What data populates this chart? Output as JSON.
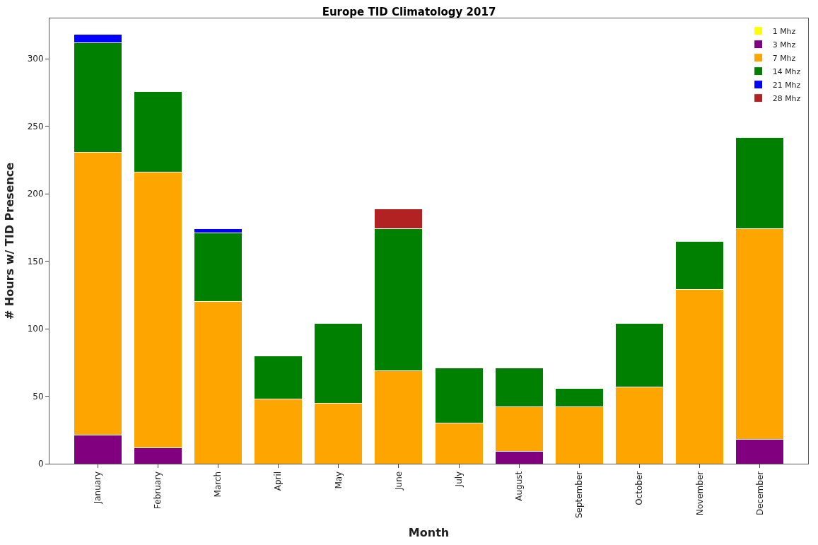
{
  "chart_data": {
    "type": "bar",
    "title": "Europe TID Climatology 2017",
    "xlabel": "Month",
    "ylabel": "# Hours w/ TID Presence",
    "categories": [
      "January",
      "February",
      "March",
      "April",
      "May",
      "June",
      "July",
      "August",
      "September",
      "October",
      "November",
      "December"
    ],
    "stacked": true,
    "ylim": [
      0,
      330
    ],
    "yticks": [
      0,
      50,
      100,
      150,
      200,
      250,
      300
    ],
    "legend": "top right",
    "series": [
      {
        "name": "1 Mhz",
        "color": "#ffff00",
        "values": [
          null,
          null,
          null,
          null,
          null,
          null,
          null,
          null,
          null,
          null,
          null,
          null
        ]
      },
      {
        "name": "3 Mhz",
        "color": "#800080",
        "values": [
          21,
          12,
          null,
          null,
          null,
          null,
          null,
          9,
          null,
          null,
          null,
          18
        ]
      },
      {
        "name": "7 Mhz",
        "color": "#ffa500",
        "values": [
          210,
          204,
          120,
          48,
          45,
          69,
          30,
          33,
          42,
          57,
          129,
          156
        ]
      },
      {
        "name": "14 Mhz",
        "color": "#008000",
        "values": [
          81,
          60,
          51,
          32,
          59,
          105,
          41,
          29,
          14,
          47,
          36,
          68
        ]
      },
      {
        "name": "21 Mhz",
        "color": "#0000ff",
        "values": [
          6,
          null,
          3,
          null,
          null,
          null,
          null,
          null,
          null,
          null,
          null,
          null
        ]
      },
      {
        "name": "28 Mhz",
        "color": "#b22222",
        "values": [
          null,
          null,
          null,
          null,
          null,
          15,
          null,
          null,
          null,
          null,
          null,
          null
        ]
      }
    ]
  }
}
